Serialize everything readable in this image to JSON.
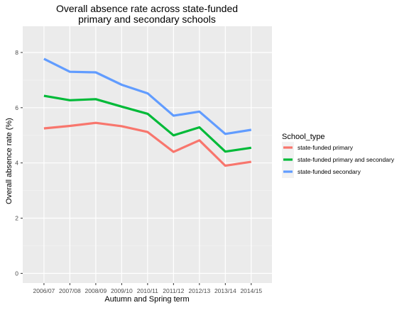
{
  "chart_data": {
    "type": "line",
    "title": "Overall absence rate across state-funded primary and secondary schools",
    "title_lines": [
      "Overall absence rate across state-funded",
      "primary and secondary schools"
    ],
    "xlabel": "Autumn and Spring term",
    "ylabel": "Overall absence rate (%)",
    "categories": [
      "2006/07",
      "2007/08",
      "2008/09",
      "2009/10",
      "2010/11",
      "2011/12",
      "2012/13",
      "2013/14",
      "2014/15"
    ],
    "ylim": [
      -0.35,
      8.95
    ],
    "yticks": [
      0,
      2,
      4,
      6,
      8
    ],
    "grid": true,
    "legend_position": "right",
    "legend_title": "School_type",
    "series": [
      {
        "name": "state-funded primary",
        "color": "#F8766D",
        "values": [
          5.25,
          5.34,
          5.45,
          5.33,
          5.12,
          4.4,
          4.82,
          3.9,
          4.04
        ]
      },
      {
        "name": "state-funded primary and secondary",
        "color": "#00BA38",
        "values": [
          6.43,
          6.27,
          6.31,
          6.04,
          5.78,
          5.0,
          5.29,
          4.41,
          4.55
        ]
      },
      {
        "name": "state-funded secondary",
        "color": "#619CFF",
        "values": [
          7.77,
          7.3,
          7.28,
          6.83,
          6.52,
          5.71,
          5.86,
          5.05,
          5.2
        ]
      }
    ]
  }
}
